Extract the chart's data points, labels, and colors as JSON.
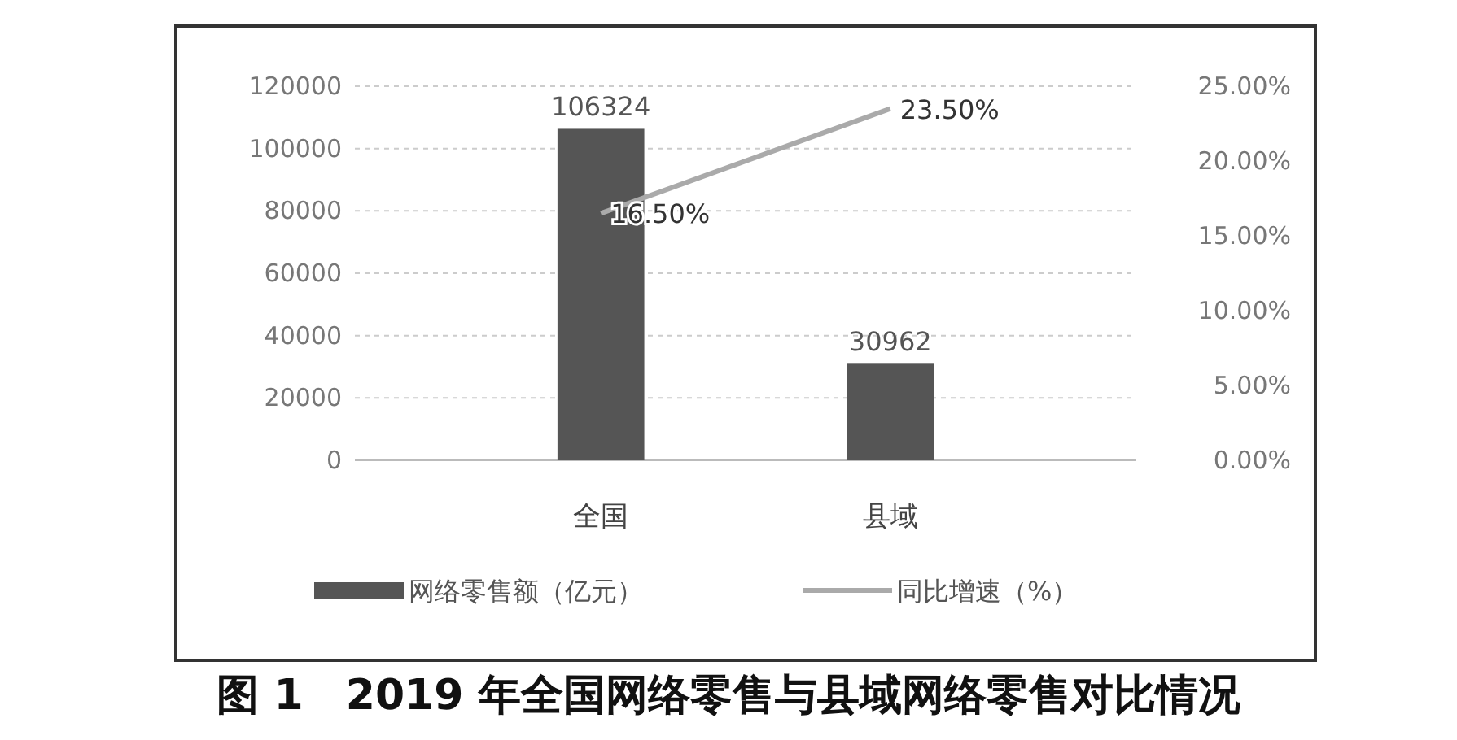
{
  "chart_data": {
    "type": "bar",
    "title": "图 1　2019 年全国网络零售与县域网络零售对比情况",
    "categories": [
      "全国",
      "县域"
    ],
    "series": [
      {
        "name": "网络零售额（亿元）",
        "color": "#555555",
        "values": [
          106324,
          30962
        ],
        "value_labels": [
          "106324",
          "30962"
        ]
      },
      {
        "name": "同比增速（%）",
        "type": "line",
        "axis": "y2",
        "color": "#aaaaaa",
        "values": [
          16.5,
          23.5
        ],
        "value_labels": [
          "16.50%",
          "23.50%"
        ]
      }
    ],
    "ylim": [
      0,
      120000
    ],
    "yticks": [
      0,
      20000,
      40000,
      60000,
      80000,
      100000,
      120000
    ],
    "y2lim": [
      0,
      25
    ],
    "y2ticks": [
      {
        "value": 0,
        "label": "0.00%"
      },
      {
        "value": 5,
        "label": "5.00%"
      },
      {
        "value": 10,
        "label": "10.00%"
      },
      {
        "value": 15,
        "label": "15.00%"
      },
      {
        "value": 20,
        "label": "20.00%"
      },
      {
        "value": 25,
        "label": "25.00%"
      }
    ],
    "grid": "y",
    "legend": "bottom",
    "marker": "none",
    "line_style": "solid"
  }
}
